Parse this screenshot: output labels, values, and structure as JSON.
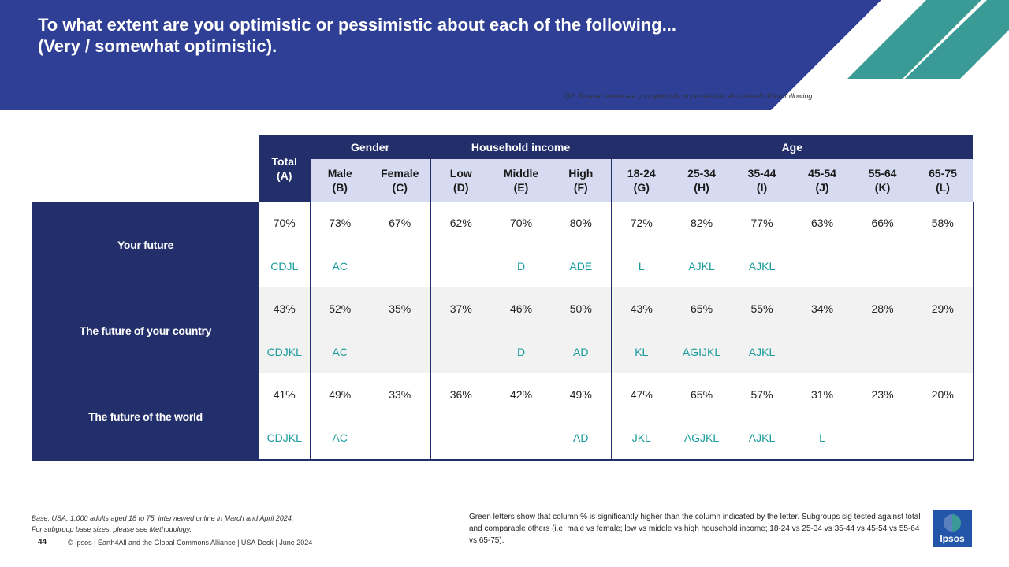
{
  "header": {
    "title_line1": "To what extent are you optimistic or pessimistic about each of the following...",
    "title_line2": "(Very / somewhat optimistic).",
    "question": "Q2. To what extent are you optimistic or pessimistic about each of the following..."
  },
  "table": {
    "total_header": [
      "Total",
      "(A)"
    ],
    "groups": {
      "gender": "Gender",
      "income": "Household income",
      "age": "Age"
    },
    "columns": [
      {
        "label": "Male",
        "code": "(B)"
      },
      {
        "label": "Female",
        "code": "(C)"
      },
      {
        "label": "Low",
        "code": "(D)"
      },
      {
        "label": "Middle",
        "code": "(E)"
      },
      {
        "label": "High",
        "code": "(F)"
      },
      {
        "label": "18-24",
        "code": "(G)"
      },
      {
        "label": "25-34",
        "code": "(H)"
      },
      {
        "label": "35-44",
        "code": "(I)"
      },
      {
        "label": "45-54",
        "code": "(J)"
      },
      {
        "label": "55-64",
        "code": "(K)"
      },
      {
        "label": "65-75",
        "code": "(L)"
      }
    ],
    "rows": [
      {
        "label": "Your future",
        "values": [
          "70%",
          "73%",
          "67%",
          "62%",
          "70%",
          "80%",
          "72%",
          "82%",
          "77%",
          "63%",
          "66%",
          "58%"
        ],
        "sig": [
          "CDJL",
          "AC",
          "",
          "",
          "D",
          "ADE",
          "L",
          "AJKL",
          "AJKL",
          "",
          "",
          ""
        ]
      },
      {
        "label": "The future of your country",
        "values": [
          "43%",
          "52%",
          "35%",
          "37%",
          "46%",
          "50%",
          "43%",
          "65%",
          "55%",
          "34%",
          "28%",
          "29%"
        ],
        "sig": [
          "CDJKL",
          "AC",
          "",
          "",
          "D",
          "AD",
          "KL",
          "AGIJKL",
          "AJKL",
          "",
          "",
          ""
        ]
      },
      {
        "label": "The future of the world",
        "values": [
          "41%",
          "49%",
          "33%",
          "36%",
          "42%",
          "49%",
          "47%",
          "65%",
          "57%",
          "31%",
          "23%",
          "20%"
        ],
        "sig": [
          "CDJKL",
          "AC",
          "",
          "",
          "",
          "AD",
          "JKL",
          "AGJKL",
          "AJKL",
          "L",
          "",
          ""
        ]
      }
    ]
  },
  "footer": {
    "base_line1": "Base: USA, 1,000 adults aged 18 to 75, interviewed online in March and April 2024.",
    "base_line2": "For subgroup base sizes, please see Methodology.",
    "page_number": "44",
    "copyright": "© Ipsos | Earth4All and the Global Commons Alliance | USA Deck | June 2024",
    "note": "Green letters show that column % is significantly higher than the column indicated by the letter.  Subgroups sig tested against total and comparable others (i.e. male vs female; low vs middle vs high household income; 18-24 vs 25-34 vs 35-44 vs 45-54 vs 55-64 vs 65-75).",
    "logo": "Ipsos"
  },
  "colors": {
    "navy": "#232f6b",
    "banner_blue": "#2e3f95",
    "teal": "#3a9a96",
    "sig_green": "#1a9b9b",
    "header_light": "#d6dbf1"
  }
}
